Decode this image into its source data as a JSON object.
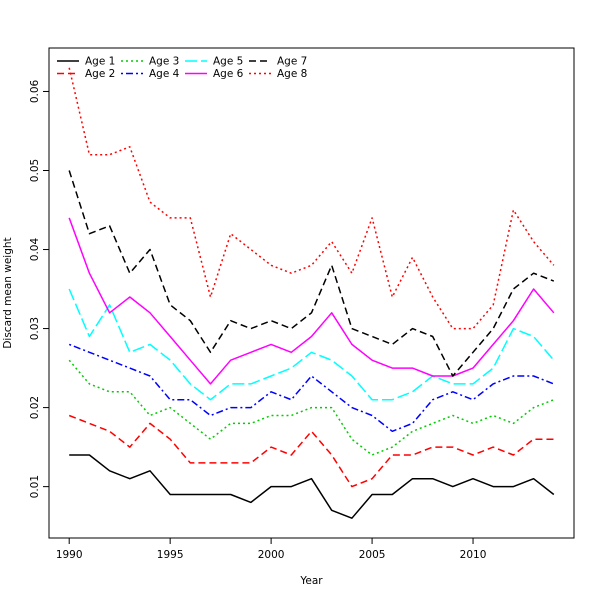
{
  "chart_data": {
    "type": "line",
    "title": "",
    "xlabel": "Year",
    "ylabel": "Discard mean weight",
    "xlim": [
      1989,
      2015
    ],
    "ylim": [
      0.0035,
      0.0655
    ],
    "x_ticks": [
      1990,
      1995,
      2000,
      2005,
      2010
    ],
    "y_ticks": [
      0.01,
      0.02,
      0.03,
      0.04,
      0.05,
      0.06
    ],
    "x_tick_labels": [
      "1990",
      "1995",
      "2000",
      "2005",
      "2010"
    ],
    "y_tick_labels": [
      "0.01",
      "0.02",
      "0.03",
      "0.04",
      "0.05",
      "0.06"
    ],
    "grid": false,
    "legend_position": "top-left",
    "x": [
      1990,
      1991,
      1992,
      1993,
      1994,
      1995,
      1996,
      1997,
      1998,
      1999,
      2000,
      2001,
      2002,
      2003,
      2004,
      2005,
      2006,
      2007,
      2008,
      2009,
      2010,
      2011,
      2012,
      2013,
      2014
    ],
    "series": [
      {
        "name": "Age 1",
        "color": "#000000",
        "dash": "solid",
        "values": [
          0.014,
          0.014,
          0.012,
          0.011,
          0.012,
          0.009,
          0.009,
          0.009,
          0.009,
          0.008,
          0.01,
          0.01,
          0.011,
          0.007,
          0.006,
          0.009,
          0.009,
          0.011,
          0.011,
          0.01,
          0.011,
          0.01,
          0.01,
          0.011,
          0.009
        ]
      },
      {
        "name": "Age 2",
        "color": "#ff0000",
        "dash": "dashed",
        "values": [
          0.019,
          0.018,
          0.017,
          0.015,
          0.018,
          0.016,
          0.013,
          0.013,
          0.013,
          0.013,
          0.015,
          0.014,
          0.017,
          0.014,
          0.01,
          0.011,
          0.014,
          0.014,
          0.015,
          0.015,
          0.014,
          0.015,
          0.014,
          0.016,
          0.016
        ]
      },
      {
        "name": "Age 3",
        "color": "#00cd00",
        "dash": "dotted",
        "values": [
          0.026,
          0.023,
          0.022,
          0.022,
          0.019,
          0.02,
          0.018,
          0.016,
          0.018,
          0.018,
          0.019,
          0.019,
          0.02,
          0.02,
          0.016,
          0.014,
          0.015,
          0.017,
          0.018,
          0.019,
          0.018,
          0.019,
          0.018,
          0.02,
          0.021
        ]
      },
      {
        "name": "Age 4",
        "color": "#0000ff",
        "dash": "dotdash",
        "values": [
          0.028,
          0.027,
          0.026,
          0.025,
          0.024,
          0.021,
          0.021,
          0.019,
          0.02,
          0.02,
          0.022,
          0.021,
          0.024,
          0.022,
          0.02,
          0.019,
          0.017,
          0.018,
          0.021,
          0.022,
          0.021,
          0.023,
          0.024,
          0.024,
          0.023
        ]
      },
      {
        "name": "Age 5",
        "color": "#00ffff",
        "dash": "longdash",
        "values": [
          0.035,
          0.029,
          0.033,
          0.027,
          0.028,
          0.026,
          0.023,
          0.021,
          0.023,
          0.023,
          0.024,
          0.025,
          0.027,
          0.026,
          0.024,
          0.021,
          0.021,
          0.022,
          0.024,
          0.023,
          0.023,
          0.025,
          0.03,
          0.029,
          0.026
        ]
      },
      {
        "name": "Age 6",
        "color": "#ff00ff",
        "dash": "solid",
        "values": [
          0.044,
          0.037,
          0.032,
          0.034,
          0.032,
          0.029,
          0.026,
          0.023,
          0.026,
          0.027,
          0.028,
          0.027,
          0.029,
          0.032,
          0.028,
          0.026,
          0.025,
          0.025,
          0.024,
          0.024,
          0.025,
          0.028,
          0.031,
          0.035,
          0.032
        ]
      },
      {
        "name": "Age 7",
        "color": "#000000",
        "dash": "dashed",
        "values": [
          0.05,
          0.042,
          0.043,
          0.037,
          0.04,
          0.033,
          0.031,
          0.027,
          0.031,
          0.03,
          0.031,
          0.03,
          0.032,
          0.038,
          0.03,
          0.029,
          0.028,
          0.03,
          0.029,
          0.024,
          0.027,
          0.03,
          0.035,
          0.037,
          0.036
        ]
      },
      {
        "name": "Age 8",
        "color": "#ff0000",
        "dash": "dotted",
        "values": [
          0.063,
          0.052,
          0.052,
          0.053,
          0.046,
          0.044,
          0.044,
          0.034,
          0.042,
          0.04,
          0.038,
          0.037,
          0.038,
          0.041,
          0.037,
          0.044,
          0.034,
          0.039,
          0.034,
          0.03,
          0.03,
          0.033,
          0.045,
          0.041,
          0.038
        ]
      }
    ]
  }
}
